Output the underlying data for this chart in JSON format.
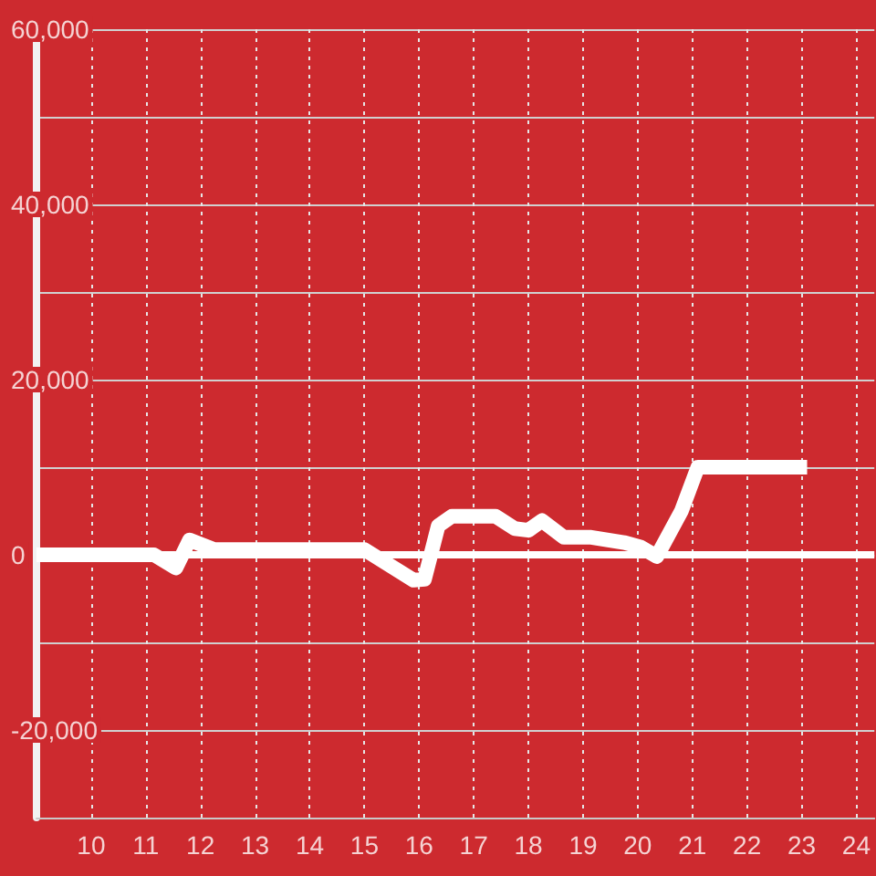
{
  "chart_data": {
    "type": "line",
    "x": [
      9,
      11.15,
      11.55,
      11.8,
      12.25,
      15.0,
      15.9,
      16.1,
      16.35,
      16.6,
      17.4,
      17.75,
      18.0,
      18.25,
      18.65,
      19.15,
      19.75,
      20.05,
      20.35,
      20.8,
      21.1,
      23.1
    ],
    "series": [
      {
        "color": "#ffffff",
        "values": [
          0,
          0,
          -1500,
          1700,
          600,
          600,
          -2900,
          -2800,
          3300,
          4400,
          4400,
          3000,
          2800,
          3900,
          2000,
          2000,
          1400,
          900,
          -200,
          5000,
          10000,
          10000
        ]
      }
    ],
    "xlim": [
      9,
      24.33
    ],
    "xticks": [
      10,
      11,
      12,
      13,
      14,
      15,
      16,
      17,
      18,
      19,
      20,
      21,
      22,
      23,
      24
    ],
    "ylim": [
      -30000,
      60000
    ],
    "yticks": [
      {
        "value": -20000,
        "label": "-20,000"
      },
      {
        "value": -10000,
        "label": null
      },
      {
        "value": 0,
        "label": "0"
      },
      {
        "value": 10000,
        "label": null
      },
      {
        "value": 20000,
        "label": "20,000"
      },
      {
        "value": 30000,
        "label": null
      },
      {
        "value": 40000,
        "label": "40,000"
      },
      {
        "value": 50000,
        "label": null
      },
      {
        "value": 60000,
        "label": "60,000"
      }
    ],
    "ref_lines": [
      {
        "axis": "y",
        "value": 0,
        "color": "#ffffff"
      }
    ],
    "grid": true,
    "legend": false,
    "marker": "none",
    "line_style": "solid"
  }
}
